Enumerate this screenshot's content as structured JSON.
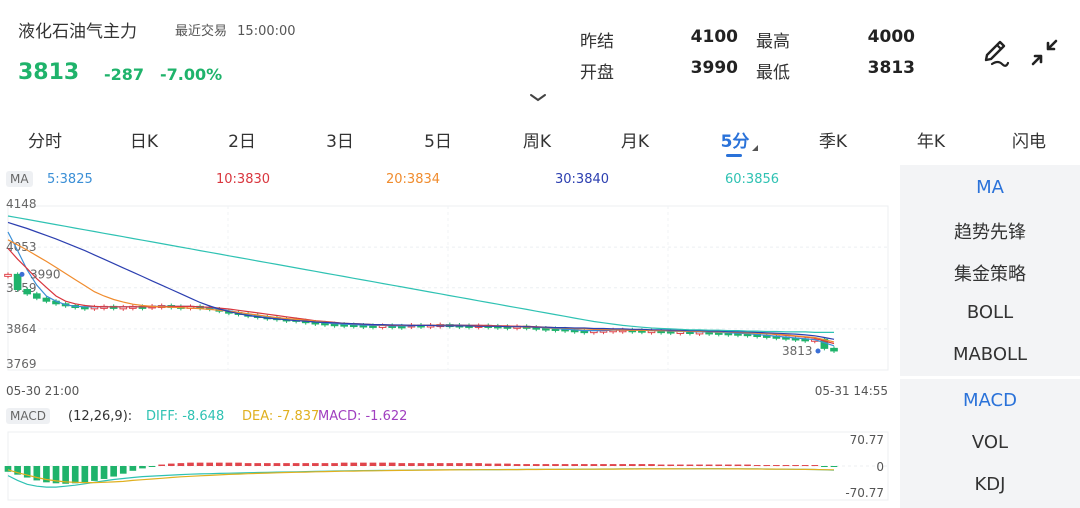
{
  "header": {
    "title": "液化石油气主力",
    "trade_label": "最近交易",
    "trade_time": "15:00:00",
    "price": "3813",
    "change": "-287",
    "change_pct": "-7.00%"
  },
  "quote": {
    "prev_settle_label": "昨结",
    "prev_settle": "4100",
    "high_label": "最高",
    "high": "4000",
    "open_label": "开盘",
    "open": "3990",
    "low_label": "最低",
    "low": "3813"
  },
  "icons": {
    "edit": "pen-edit-icon",
    "fullscreen": "collapse-arrows-icon",
    "expand": "chevron-down-icon"
  },
  "tabs": [
    "分时",
    "日K",
    "2日",
    "3日",
    "5日",
    "周K",
    "月K",
    "5分",
    "季K",
    "年K",
    "闪电"
  ],
  "active_tab": "5分",
  "ma_legend": {
    "tag": "MA",
    "items": [
      {
        "label": "5:3825",
        "color": "#3b8fd6"
      },
      {
        "label": "10:3830",
        "color": "#d9363e"
      },
      {
        "label": "20:3834",
        "color": "#f08c2e"
      },
      {
        "label": "30:3840",
        "color": "#2c3fb0"
      },
      {
        "label": "60:3856",
        "color": "#2fc2b3"
      }
    ]
  },
  "macd_legend": {
    "tag": "MACD",
    "params": "(12,26,9):",
    "diff": "DIFF: -8.648",
    "dea": "DEA: -7.837",
    "macd": "MACD: -1.622"
  },
  "colors": {
    "up": "#e0454c",
    "down": "#1fb36b",
    "accent": "#2a72d9",
    "diff": "#2fc2b3",
    "dea": "#e0b020"
  },
  "right_panel": {
    "main_items": [
      "MA",
      "趋势先锋",
      "集金策略",
      "BOLL",
      "MABOLL"
    ],
    "sub_items": [
      "MACD",
      "VOL",
      "KDJ"
    ],
    "main_active": "MA",
    "sub_active": "MACD"
  },
  "chart_data": [
    {
      "type": "candlestick",
      "interval": "5分",
      "y_ticks": [
        "4148",
        "4053",
        "3959",
        "3864",
        "3769"
      ],
      "ylim": [
        3769,
        4148
      ],
      "x_start_label": "05-30 21:00",
      "x_end_label": "05-31 14:55",
      "annotations": [
        "3990",
        "3813"
      ],
      "grid": true,
      "close": [
        3990,
        3955,
        3945,
        3935,
        3928,
        3922,
        3918,
        3915,
        3914,
        3915,
        3916,
        3914,
        3915,
        3916,
        3915,
        3917,
        3918,
        3916,
        3915,
        3916,
        3914,
        3910,
        3905,
        3902,
        3898,
        3895,
        3892,
        3890,
        3887,
        3886,
        3883,
        3880,
        3878,
        3876,
        3875,
        3874,
        3873,
        3872,
        3871,
        3872,
        3871,
        3870,
        3873,
        3872,
        3873,
        3874,
        3873,
        3872,
        3871,
        3872,
        3871,
        3870,
        3869,
        3870,
        3868,
        3866,
        3865,
        3864,
        3862,
        3860,
        3859,
        3860,
        3861,
        3862,
        3862,
        3861,
        3860,
        3860,
        3859,
        3858,
        3858,
        3857,
        3857,
        3856,
        3855,
        3854,
        3853,
        3851,
        3849,
        3847,
        3845,
        3843,
        3841,
        3840,
        3840,
        3819,
        3813
      ],
      "ma": [
        {
          "name": "5",
          "last": 3825,
          "values": [
            4088,
            4045,
            4000,
            3965,
            3940,
            3928,
            3920,
            3916,
            3915,
            3915,
            3915,
            3915,
            3915,
            3915,
            3915,
            3916,
            3916,
            3916,
            3916,
            3916,
            3915,
            3913,
            3910,
            3906,
            3902,
            3898,
            3895,
            3892,
            3889,
            3887,
            3885,
            3882,
            3880,
            3878,
            3876,
            3875,
            3874,
            3873,
            3872,
            3872,
            3871,
            3871,
            3871,
            3872,
            3872,
            3873,
            3873,
            3873,
            3872,
            3872,
            3871,
            3871,
            3870,
            3870,
            3869,
            3868,
            3866,
            3865,
            3863,
            3862,
            3860,
            3860,
            3860,
            3861,
            3861,
            3861,
            3861,
            3860,
            3860,
            3859,
            3858,
            3858,
            3857,
            3857,
            3856,
            3855,
            3854,
            3853,
            3851,
            3849,
            3847,
            3845,
            3843,
            3841,
            3839,
            3832,
            3825
          ]
        },
        {
          "name": "10",
          "last": 3830,
          "values": [
            4050,
            4025,
            4003,
            3980,
            3960,
            3940,
            3928,
            3922,
            3918,
            3916,
            3915,
            3915,
            3915,
            3915,
            3915,
            3915,
            3915,
            3916,
            3916,
            3916,
            3915,
            3914,
            3912,
            3910,
            3907,
            3904,
            3901,
            3898,
            3895,
            3892,
            3889,
            3886,
            3883,
            3881,
            3879,
            3877,
            3876,
            3875,
            3874,
            3873,
            3872,
            3872,
            3872,
            3872,
            3872,
            3872,
            3872,
            3872,
            3872,
            3872,
            3872,
            3871,
            3871,
            3870,
            3870,
            3869,
            3868,
            3867,
            3866,
            3865,
            3864,
            3863,
            3862,
            3862,
            3861,
            3861,
            3861,
            3861,
            3861,
            3860,
            3860,
            3859,
            3859,
            3858,
            3858,
            3857,
            3856,
            3855,
            3854,
            3853,
            3851,
            3849,
            3847,
            3845,
            3843,
            3836,
            3830
          ]
        },
        {
          "name": "20",
          "last": 3834,
          "values": [
            4070,
            4058,
            4046,
            4033,
            4020,
            4006,
            3992,
            3978,
            3964,
            3950,
            3940,
            3932,
            3926,
            3921,
            3918,
            3916,
            3915,
            3914,
            3913,
            3912,
            3911,
            3909,
            3907,
            3905,
            3902,
            3899,
            3896,
            3893,
            3890,
            3888,
            3886,
            3884,
            3882,
            3880,
            3878,
            3877,
            3876,
            3875,
            3874,
            3873,
            3873,
            3872,
            3872,
            3872,
            3872,
            3872,
            3871,
            3871,
            3871,
            3870,
            3870,
            3870,
            3869,
            3869,
            3868,
            3868,
            3867,
            3866,
            3866,
            3865,
            3864,
            3863,
            3863,
            3862,
            3862,
            3861,
            3861,
            3860,
            3860,
            3860,
            3859,
            3859,
            3858,
            3858,
            3857,
            3857,
            3856,
            3855,
            3854,
            3853,
            3852,
            3850,
            3848,
            3846,
            3844,
            3839,
            3834
          ]
        },
        {
          "name": "30",
          "last": 3840,
          "values": [
            4110,
            4103,
            4096,
            4088,
            4080,
            4072,
            4063,
            4054,
            4045,
            4035,
            4025,
            4015,
            4005,
            3995,
            3985,
            3975,
            3965,
            3955,
            3945,
            3935,
            3925,
            3917,
            3910,
            3904,
            3899,
            3895,
            3892,
            3889,
            3887,
            3885,
            3883,
            3882,
            3880,
            3879,
            3878,
            3877,
            3876,
            3875,
            3874,
            3874,
            3873,
            3873,
            3872,
            3872,
            3872,
            3871,
            3871,
            3871,
            3871,
            3870,
            3870,
            3870,
            3869,
            3869,
            3869,
            3868,
            3868,
            3867,
            3867,
            3866,
            3866,
            3865,
            3865,
            3864,
            3864,
            3863,
            3863,
            3862,
            3862,
            3861,
            3861,
            3860,
            3860,
            3859,
            3859,
            3858,
            3857,
            3857,
            3856,
            3855,
            3854,
            3853,
            3852,
            3850,
            3848,
            3844,
            3840
          ]
        },
        {
          "name": "60",
          "last": 3856,
          "values": [
            4125,
            4121,
            4117,
            4113,
            4109,
            4105,
            4101,
            4097,
            4093,
            4089,
            4085,
            4081,
            4077,
            4073,
            4069,
            4065,
            4061,
            4057,
            4053,
            4049,
            4045,
            4041,
            4037,
            4033,
            4029,
            4025,
            4021,
            4017,
            4013,
            4009,
            4005,
            4001,
            3997,
            3993,
            3989,
            3985,
            3981,
            3977,
            3973,
            3969,
            3965,
            3961,
            3957,
            3953,
            3949,
            3945,
            3941,
            3937,
            3933,
            3929,
            3925,
            3921,
            3917,
            3913,
            3909,
            3905,
            3901,
            3897,
            3893,
            3889,
            3885,
            3881,
            3878,
            3875,
            3872,
            3870,
            3868,
            3866,
            3865,
            3864,
            3863,
            3862,
            3862,
            3861,
            3861,
            3860,
            3860,
            3859,
            3859,
            3858,
            3858,
            3857,
            3857,
            3857,
            3856,
            3856,
            3856
          ]
        }
      ]
    },
    {
      "type": "bar",
      "name": "MACD",
      "params": "(12,26,9)",
      "y_ticks": [
        "70.77",
        "0",
        "-70.77"
      ],
      "ylim": [
        -70.77,
        70.77
      ],
      "grid": true,
      "macd": [
        -12,
        -18,
        -24,
        -30,
        -34,
        -36,
        -37,
        -36,
        -34,
        -31,
        -27,
        -22,
        -16,
        -10,
        -5,
        -2,
        3,
        5,
        6,
        7,
        7,
        7,
        7,
        7,
        7,
        6,
        6,
        6,
        6,
        6,
        6,
        6,
        6,
        6,
        6,
        7,
        7,
        7,
        7,
        7,
        7,
        6,
        6,
        6,
        6,
        6,
        6,
        6,
        6,
        6,
        5,
        5,
        5,
        4,
        4,
        4,
        4,
        4,
        4,
        4,
        4,
        4,
        4,
        4,
        4,
        4,
        4,
        4,
        3,
        3,
        3,
        3,
        3,
        3,
        3,
        3,
        3,
        3,
        2,
        2,
        2,
        2,
        2,
        2,
        2,
        -1,
        -1.622
      ],
      "diff": [
        -20,
        -30,
        -38,
        -42,
        -44,
        -44,
        -42,
        -40,
        -37,
        -34,
        -31,
        -28,
        -26,
        -24,
        -22,
        -21,
        -20,
        -19,
        -18,
        -17,
        -16.5,
        -16,
        -15.5,
        -15,
        -14.5,
        -14,
        -13.6,
        -13.2,
        -12.8,
        -12.4,
        -12,
        -11.6,
        -11.2,
        -10.8,
        -10.4,
        -10,
        -9.8,
        -9.6,
        -9.4,
        -9.2,
        -9,
        -8.8,
        -8.6,
        -8.4,
        -8.2,
        -8,
        -7.9,
        -7.8,
        -7.7,
        -7.6,
        -7.5,
        -7.4,
        -7.3,
        -7.2,
        -7.1,
        -7,
        -6.9,
        -6.8,
        -6.7,
        -6.6,
        -6.5,
        -6.4,
        -6.3,
        -6.2,
        -6.1,
        -6,
        -6,
        -5.9,
        -5.9,
        -5.8,
        -5.8,
        -5.8,
        -5.7,
        -5.7,
        -5.7,
        -5.8,
        -5.9,
        -6,
        -6.1,
        -6.2,
        -6.4,
        -6.6,
        -6.8,
        -7,
        -7.3,
        -8,
        -8.648
      ],
      "dea": [
        -8,
        -14,
        -19,
        -24,
        -28,
        -31,
        -33,
        -34,
        -34.5,
        -34.5,
        -34,
        -33,
        -32,
        -30,
        -28.5,
        -27,
        -25.5,
        -24,
        -22.5,
        -21.5,
        -20.5,
        -19.5,
        -18.5,
        -17.5,
        -16.8,
        -16,
        -15.4,
        -14.8,
        -14.2,
        -13.6,
        -13.1,
        -12.6,
        -12.1,
        -11.7,
        -11.3,
        -10.9,
        -10.6,
        -10.3,
        -10,
        -9.7,
        -9.4,
        -9.2,
        -9,
        -8.8,
        -8.6,
        -8.4,
        -8.2,
        -8,
        -7.9,
        -7.8,
        -7.7,
        -7.6,
        -7.5,
        -7.4,
        -7.3,
        -7.2,
        -7.1,
        -7,
        -6.9,
        -6.8,
        -6.7,
        -6.6,
        -6.5,
        -6.4,
        -6.3,
        -6.2,
        -6.1,
        -6.1,
        -6,
        -6,
        -5.9,
        -5.9,
        -5.9,
        -5.9,
        -5.9,
        -6,
        -6.1,
        -6.2,
        -6.3,
        -6.4,
        -6.5,
        -6.7,
        -6.9,
        -7.1,
        -7.3,
        -7.6,
        -7.837
      ]
    }
  ]
}
